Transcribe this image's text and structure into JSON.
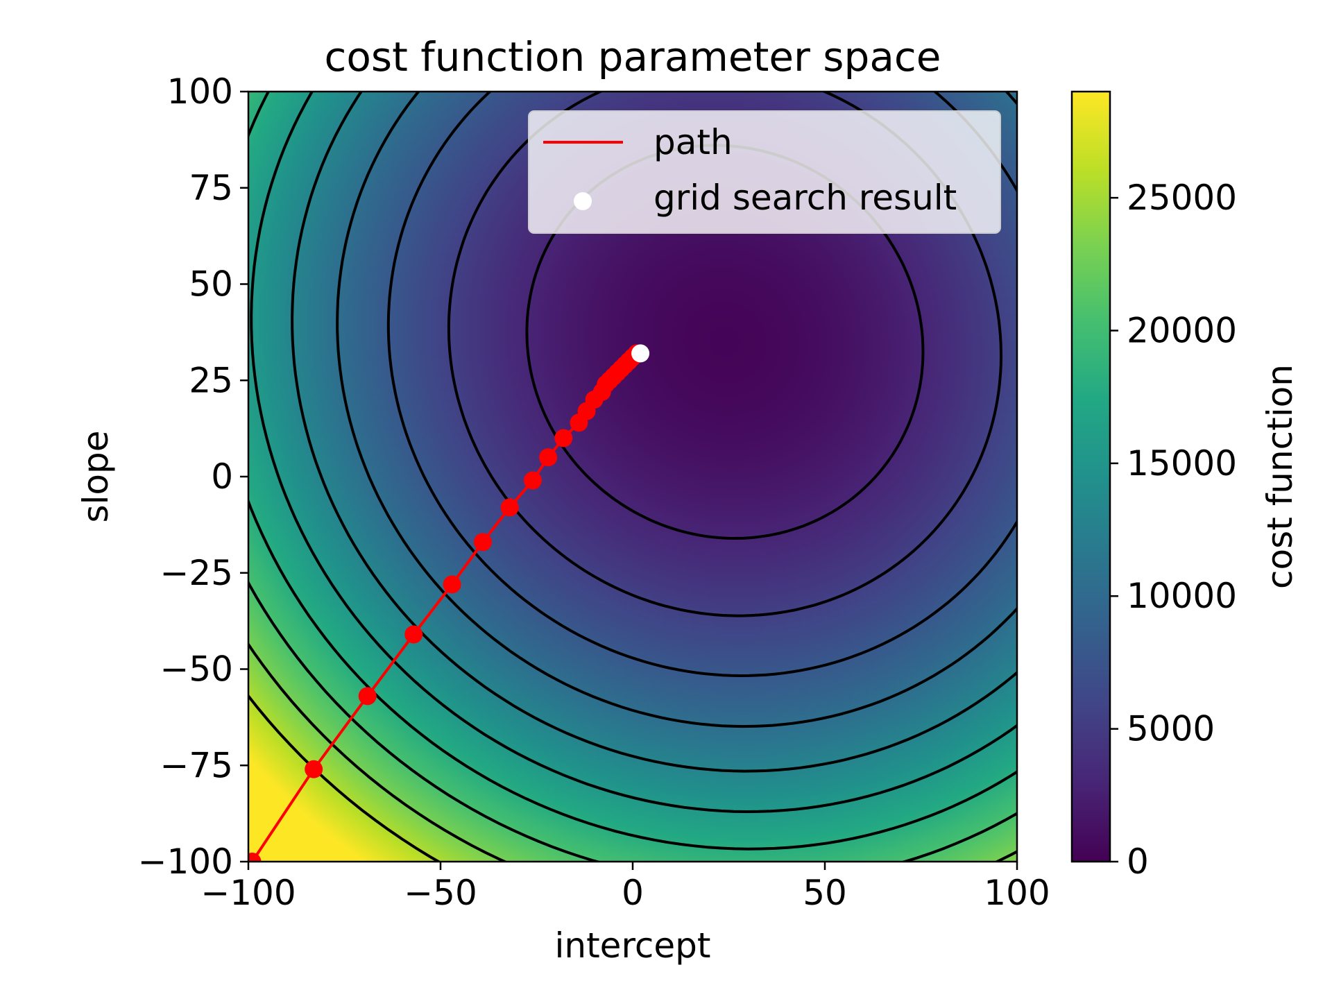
{
  "chart_data": {
    "type": "heatmap",
    "title": "cost function parameter space",
    "xlabel": "intercept",
    "ylabel": "slope",
    "xlim": [
      -100,
      100
    ],
    "ylim": [
      -100,
      100
    ],
    "x_ticks": [
      -100,
      -50,
      0,
      50,
      100
    ],
    "x_tick_labels": [
      "−100",
      "−50",
      "0",
      "50",
      "100"
    ],
    "y_ticks": [
      -100,
      -75,
      -50,
      -25,
      0,
      25,
      50,
      75,
      100
    ],
    "y_tick_labels": [
      "−100",
      "−75",
      "−50",
      "−25",
      "0",
      "25",
      "50",
      "75",
      "100"
    ],
    "colormap": "viridis",
    "colorbar": {
      "label": "cost function",
      "range": [
        0,
        29000
      ],
      "ticks": [
        0,
        5000,
        10000,
        15000,
        20000,
        25000
      ],
      "tick_labels": [
        "0",
        "5000",
        "10000",
        "15000",
        "20000",
        "25000"
      ]
    },
    "cost_surface": {
      "minimum": [
        24,
        35
      ],
      "min_value": 350,
      "coef_intercept": 1.0,
      "coef_slope": 1.02,
      "coef_cross": 0.1
    },
    "contour_levels": [
      3000,
      5500,
      8000,
      10500,
      13000,
      15500,
      18000,
      20500,
      23000,
      25500
    ],
    "legend": {
      "placement": "upper right",
      "entries": [
        {
          "label": "path",
          "marker": "line",
          "color": "#ff0000"
        },
        {
          "label": "grid search result",
          "marker": "circle",
          "color": "#ffffff"
        }
      ]
    },
    "series": [
      {
        "name": "path",
        "type": "line",
        "color": "#ff0000",
        "points": [
          [
            -99,
            -100
          ],
          [
            -83,
            -76
          ],
          [
            -69,
            -57
          ],
          [
            -57,
            -41
          ],
          [
            -47,
            -28
          ],
          [
            -39,
            -17
          ],
          [
            -32,
            -8
          ],
          [
            -26,
            -1
          ],
          [
            -22,
            5
          ],
          [
            -18,
            10
          ],
          [
            -14,
            14
          ],
          [
            -12,
            17
          ],
          [
            -10,
            20
          ],
          [
            -8,
            22
          ],
          [
            -7,
            24
          ],
          [
            -6,
            25
          ],
          [
            -5,
            26
          ],
          [
            -4,
            27
          ],
          [
            -3,
            28
          ],
          [
            -2,
            29
          ],
          [
            -1,
            30
          ],
          [
            0,
            31
          ],
          [
            1,
            32
          ]
        ]
      },
      {
        "name": "grid search result",
        "type": "scatter",
        "color": "#ffffff",
        "points": [
          [
            2,
            32
          ]
        ]
      }
    ]
  }
}
